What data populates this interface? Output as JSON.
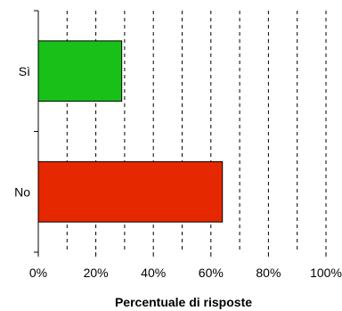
{
  "chart_data": {
    "type": "bar",
    "orientation": "horizontal",
    "categories": [
      "Sì",
      "No"
    ],
    "values": [
      29,
      64
    ],
    "colors": [
      "#18c018",
      "#e62800"
    ],
    "xlim": [
      0,
      100
    ],
    "xticks": [
      0,
      20,
      40,
      60,
      80,
      100
    ],
    "tick_format": "{v}%",
    "xlabel": "Percentuale di risposte",
    "ylabel": "",
    "title": "",
    "grid": "vertical dashed",
    "legend": "none"
  }
}
